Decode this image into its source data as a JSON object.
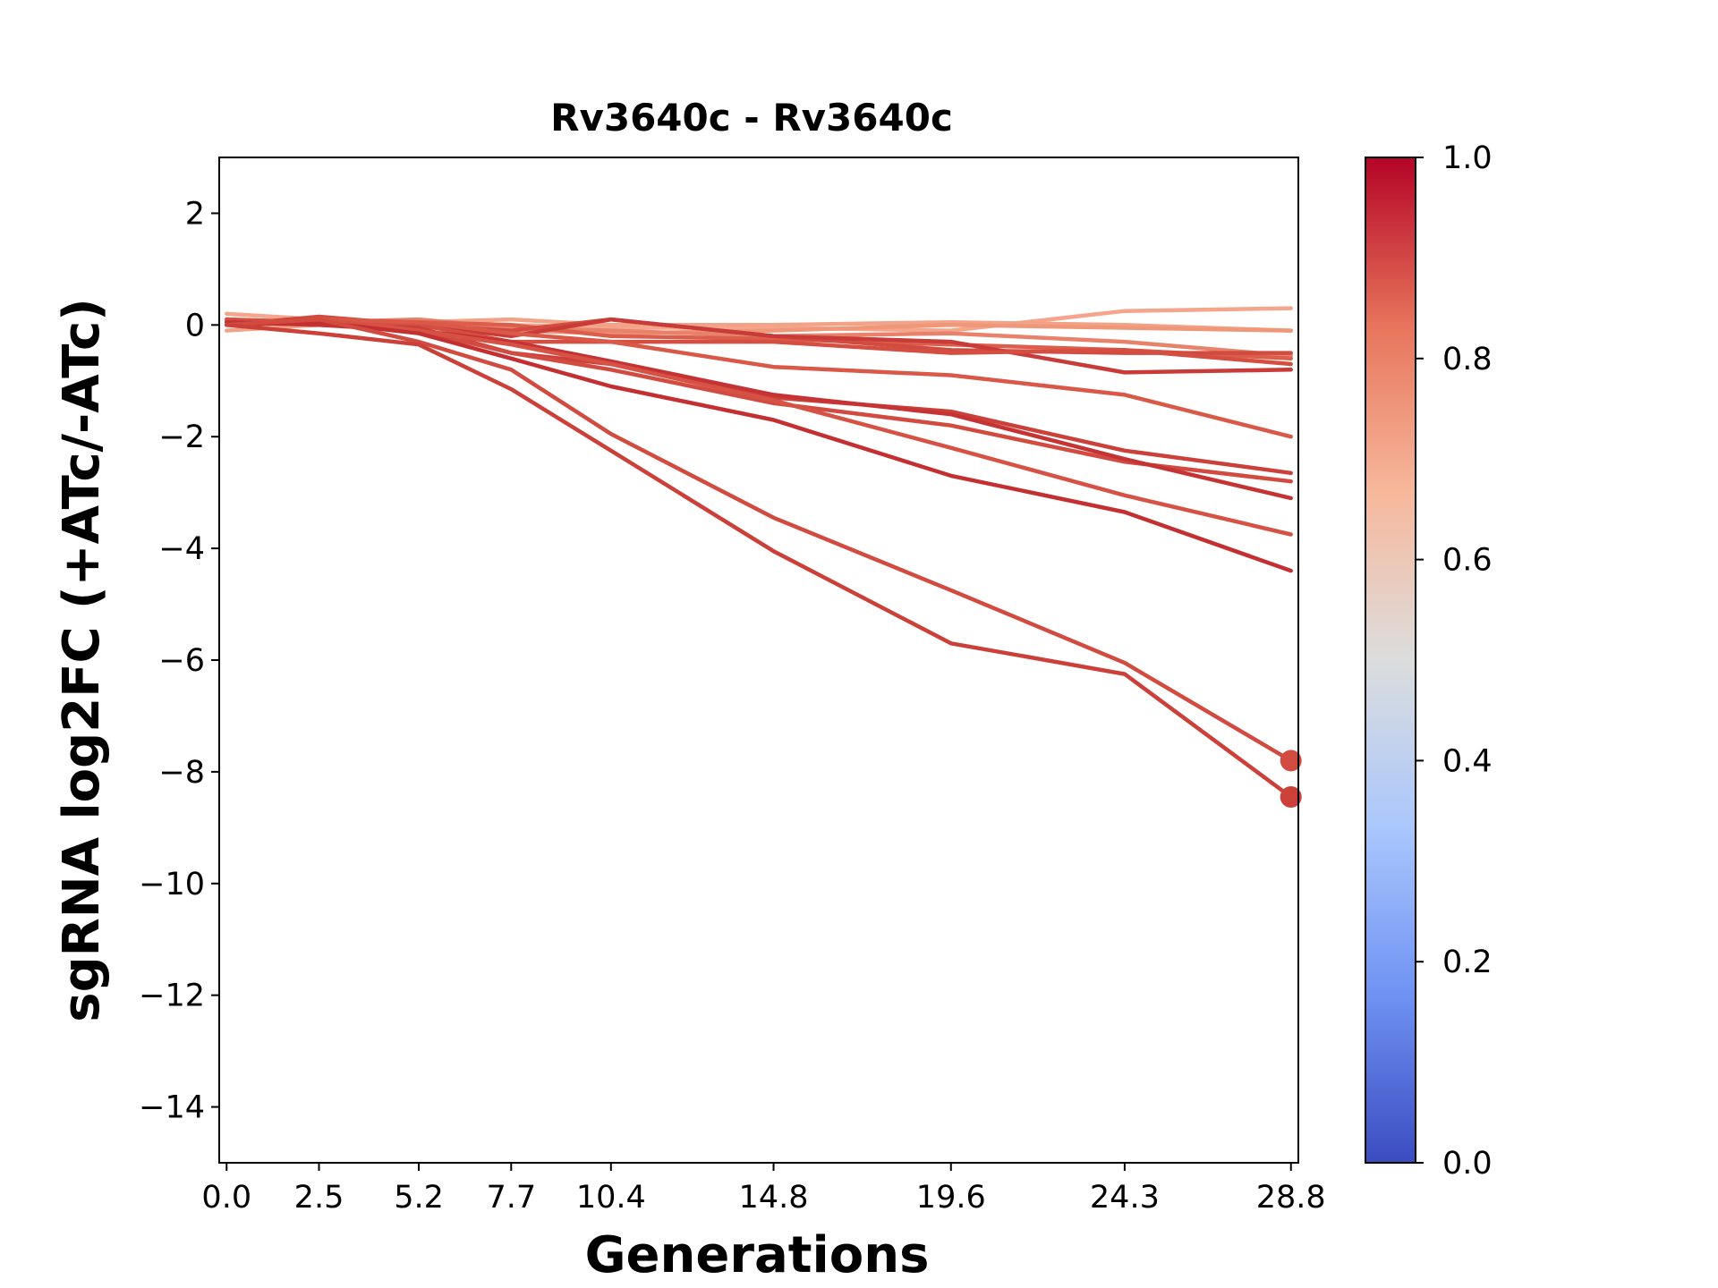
{
  "chart_data": {
    "type": "line",
    "title": "Rv3640c - Rv3640c",
    "xlabel": "Generations",
    "ylabel": "sgRNA log2FC (+ATc/-ATc)",
    "x": [
      0.0,
      2.5,
      5.2,
      7.7,
      10.4,
      14.8,
      19.6,
      24.3,
      28.8
    ],
    "x_tick_labels": [
      "0.0",
      "2.5",
      "5.2",
      "7.7",
      "10.4",
      "14.8",
      "19.6",
      "24.3",
      "28.8"
    ],
    "xlim": [
      -0.2,
      29.0
    ],
    "ylim": [
      -15,
      3
    ],
    "y_ticks": [
      2,
      0,
      -2,
      -4,
      -6,
      -8,
      -10,
      -12,
      -14
    ],
    "y_tick_labels": [
      "2",
      "0",
      "−2",
      "−4",
      "−6",
      "−8",
      "−10",
      "−12",
      "−14"
    ],
    "grid": false,
    "colorbar": {
      "colormap": "coolwarm",
      "range": [
        0.0,
        1.0
      ],
      "ticks": [
        0.0,
        0.2,
        0.4,
        0.6,
        0.8,
        1.0
      ],
      "tick_labels": [
        "0.0",
        "0.2",
        "0.4",
        "0.6",
        "0.8",
        "1.0"
      ],
      "stops": [
        "#3b4cc0",
        "#6f92f3",
        "#aac7fd",
        "#dcdddd",
        "#f7b89c",
        "#e7745b",
        "#b40426"
      ]
    },
    "series": [
      {
        "values": [
          0.2,
          0.1,
          0.05,
          0.0,
          -0.05,
          -0.05,
          -0.1,
          0.25,
          0.3
        ],
        "color": "#f4a58b"
      },
      {
        "values": [
          -0.1,
          0.0,
          0.05,
          0.1,
          0.0,
          0.0,
          0.05,
          0.0,
          -0.1
        ],
        "color": "#f2a387"
      },
      {
        "values": [
          0.1,
          0.05,
          0.0,
          -0.1,
          -0.15,
          -0.1,
          0.0,
          -0.05,
          -0.1
        ],
        "color": "#ef9778"
      },
      {
        "values": [
          0.0,
          0.05,
          0.1,
          -0.05,
          -0.1,
          -0.2,
          -0.15,
          -0.3,
          -0.55
        ],
        "color": "#e8826a"
      },
      {
        "values": [
          0.1,
          0.0,
          0.05,
          0.0,
          -0.2,
          -0.25,
          -0.35,
          -0.45,
          -0.6
        ],
        "color": "#dc5d4a"
      },
      {
        "values": [
          0.0,
          0.15,
          0.0,
          -0.1,
          0.1,
          -0.2,
          -0.45,
          -0.5,
          -0.5
        ],
        "color": "#d24b40"
      },
      {
        "values": [
          0.05,
          0.1,
          0.0,
          -0.2,
          0.1,
          -0.2,
          -0.3,
          -0.85,
          -0.8
        ],
        "color": "#c93b38"
      },
      {
        "values": [
          0.1,
          0.05,
          0.0,
          -0.3,
          -0.3,
          -0.3,
          -0.5,
          -0.45,
          -0.7
        ],
        "color": "#d44e41"
      },
      {
        "values": [
          0.0,
          0.1,
          0.05,
          -0.15,
          -0.3,
          -0.75,
          -0.9,
          -1.25,
          -2.0
        ],
        "color": "#d95847"
      },
      {
        "values": [
          0.05,
          0.0,
          -0.05,
          -0.5,
          -0.7,
          -1.3,
          -1.55,
          -2.25,
          -2.65
        ],
        "color": "#cc403a"
      },
      {
        "values": [
          0.0,
          0.05,
          -0.1,
          -0.5,
          -0.8,
          -1.4,
          -1.8,
          -2.45,
          -2.8
        ],
        "color": "#d24b40"
      },
      {
        "values": [
          0.05,
          0.0,
          -0.1,
          -0.3,
          -0.65,
          -1.25,
          -1.6,
          -2.4,
          -3.1
        ],
        "color": "#c53334"
      },
      {
        "values": [
          0.0,
          0.1,
          -0.1,
          -0.35,
          -0.7,
          -1.35,
          -2.2,
          -3.05,
          -3.75
        ],
        "color": "#d65244"
      },
      {
        "values": [
          0.0,
          0.05,
          -0.15,
          -0.6,
          -1.1,
          -1.7,
          -2.7,
          -3.35,
          -4.4
        ],
        "color": "#c43032"
      },
      {
        "values": [
          0.0,
          0.1,
          -0.3,
          -0.8,
          -1.95,
          -3.45,
          -4.75,
          -6.05,
          -7.8
        ],
        "color": "#d24b40",
        "end_marker": true
      },
      {
        "values": [
          0.0,
          -0.15,
          -0.35,
          -1.15,
          -2.25,
          -4.05,
          -5.7,
          -6.25,
          -8.45
        ],
        "color": "#cc403a",
        "end_marker": true
      }
    ]
  }
}
